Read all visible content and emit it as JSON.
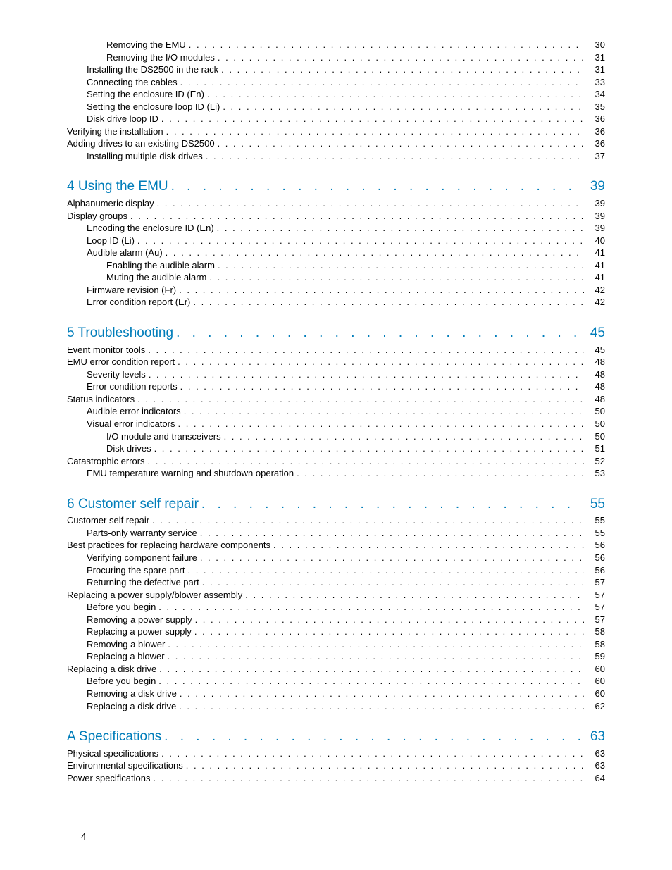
{
  "leader_char": ".",
  "page_number": "4",
  "colors": {
    "section": "#007dba",
    "text": "#000000",
    "background": "#ffffff"
  },
  "entries": [
    {
      "level": 3,
      "label": "Removing the EMU",
      "page": "30"
    },
    {
      "level": 3,
      "label": "Removing the I/O modules",
      "page": "31"
    },
    {
      "level": 2,
      "label": "Installing the DS2500 in the rack",
      "page": "31"
    },
    {
      "level": 2,
      "label": "Connecting the cables",
      "page": "33"
    },
    {
      "level": 2,
      "label": "Setting the enclosure ID (En)",
      "page": "34"
    },
    {
      "level": 2,
      "label": "Setting the enclosure loop ID (Li)",
      "page": "35"
    },
    {
      "level": 2,
      "label": "Disk drive loop ID",
      "page": "36"
    },
    {
      "level": 1,
      "label": "Verifying the installation",
      "page": "36"
    },
    {
      "level": 1,
      "label": "Adding drives to an existing DS2500",
      "page": "36"
    },
    {
      "level": 2,
      "label": "Installing multiple disk drives",
      "page": "37"
    },
    {
      "level": 0,
      "label": "4 Using the EMU",
      "page": "39"
    },
    {
      "level": 1,
      "label": "Alphanumeric display",
      "page": "39"
    },
    {
      "level": 1,
      "label": "Display groups",
      "page": "39"
    },
    {
      "level": 2,
      "label": "Encoding the enclosure ID (En)",
      "page": "39"
    },
    {
      "level": 2,
      "label": "Loop ID (Li)",
      "page": "40"
    },
    {
      "level": 2,
      "label": "Audible alarm (Au)",
      "page": "41"
    },
    {
      "level": 3,
      "label": "Enabling the audible alarm",
      "page": "41"
    },
    {
      "level": 3,
      "label": "Muting the audible alarm",
      "page": "41"
    },
    {
      "level": 2,
      "label": "Firmware revision (Fr)",
      "page": "42"
    },
    {
      "level": 2,
      "label": "Error condition report (Er)",
      "page": "42"
    },
    {
      "level": 0,
      "label": "5 Troubleshooting",
      "page": "45"
    },
    {
      "level": 1,
      "label": "Event monitor tools",
      "page": "45"
    },
    {
      "level": 1,
      "label": "EMU error condition report",
      "page": "48"
    },
    {
      "level": 2,
      "label": "Severity levels",
      "page": "48"
    },
    {
      "level": 2,
      "label": "Error condition reports",
      "page": "48"
    },
    {
      "level": 1,
      "label": "Status indicators",
      "page": "48"
    },
    {
      "level": 2,
      "label": "Audible error indicators",
      "page": "50"
    },
    {
      "level": 2,
      "label": "Visual error indicators",
      "page": "50"
    },
    {
      "level": 3,
      "label": "I/O module and transceivers",
      "page": "50"
    },
    {
      "level": 3,
      "label": "Disk drives",
      "page": "51"
    },
    {
      "level": 1,
      "label": "Catastrophic errors",
      "page": "52"
    },
    {
      "level": 2,
      "label": "EMU temperature warning and shutdown operation",
      "page": "53"
    },
    {
      "level": 0,
      "label": "6 Customer self repair",
      "page": "55"
    },
    {
      "level": 1,
      "label": "Customer self repair",
      "page": "55"
    },
    {
      "level": 2,
      "label": "Parts-only warranty service",
      "page": "55"
    },
    {
      "level": 1,
      "label": "Best practices for replacing hardware components",
      "page": "56"
    },
    {
      "level": 2,
      "label": "Verifying component failure",
      "page": "56"
    },
    {
      "level": 2,
      "label": "Procuring the spare part",
      "page": "56"
    },
    {
      "level": 2,
      "label": "Returning the defective part",
      "page": "57"
    },
    {
      "level": 1,
      "label": "Replacing a power supply/blower assembly",
      "page": "57"
    },
    {
      "level": 2,
      "label": "Before you begin",
      "page": "57"
    },
    {
      "level": 2,
      "label": "Removing a power supply",
      "page": "57"
    },
    {
      "level": 2,
      "label": "Replacing a power supply",
      "page": "58"
    },
    {
      "level": 2,
      "label": "Removing a blower",
      "page": "58"
    },
    {
      "level": 2,
      "label": "Replacing a blower",
      "page": "59"
    },
    {
      "level": 1,
      "label": "Replacing a disk drive",
      "page": "60"
    },
    {
      "level": 2,
      "label": "Before you begin",
      "page": "60"
    },
    {
      "level": 2,
      "label": "Removing a disk drive",
      "page": "60"
    },
    {
      "level": 2,
      "label": "Replacing a disk drive",
      "page": "62"
    },
    {
      "level": 0,
      "label": "A Specifications",
      "page": "63"
    },
    {
      "level": 1,
      "label": "Physical specifications",
      "page": "63"
    },
    {
      "level": 1,
      "label": "Environmental specifications",
      "page": "63"
    },
    {
      "level": 1,
      "label": "Power specifications",
      "page": "64"
    }
  ]
}
